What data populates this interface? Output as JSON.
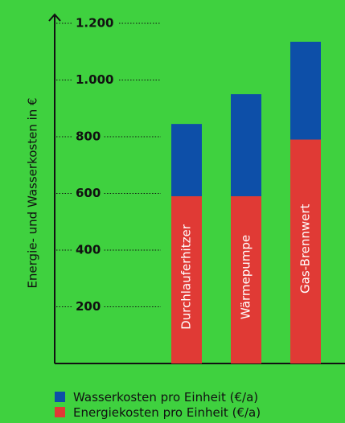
{
  "chart_data": {
    "type": "bar",
    "stacked": true,
    "ylabel": "Energie- und Wasserkosten in €",
    "yticks": [
      "200",
      "400",
      "600",
      "800",
      "1.000",
      "1.200"
    ],
    "ytick_values": [
      200,
      400,
      600,
      800,
      1000,
      1200
    ],
    "ylim": [
      0,
      1350
    ],
    "grid": false,
    "categories": [
      "Durchlauferhitzer",
      "Wärmepumpe",
      "Gas-Brennwert"
    ],
    "series": [
      {
        "name": "Energiekosten pro Einheit (€/a)",
        "color": "#e03a35",
        "values": [
          590,
          590,
          790
        ]
      },
      {
        "name": "Wasserkosten pro Einheit (€/a)",
        "color": "#0d4fa8",
        "values": [
          255,
          360,
          345
        ]
      }
    ],
    "legend": {
      "placement": "bottom-left",
      "items": [
        {
          "label": "Wasserkosten pro Einheit (€/a)",
          "color": "#0d4fa8"
        },
        {
          "label": "Energiekosten pro Einheit (€/a)",
          "color": "#e03a35"
        }
      ]
    }
  }
}
